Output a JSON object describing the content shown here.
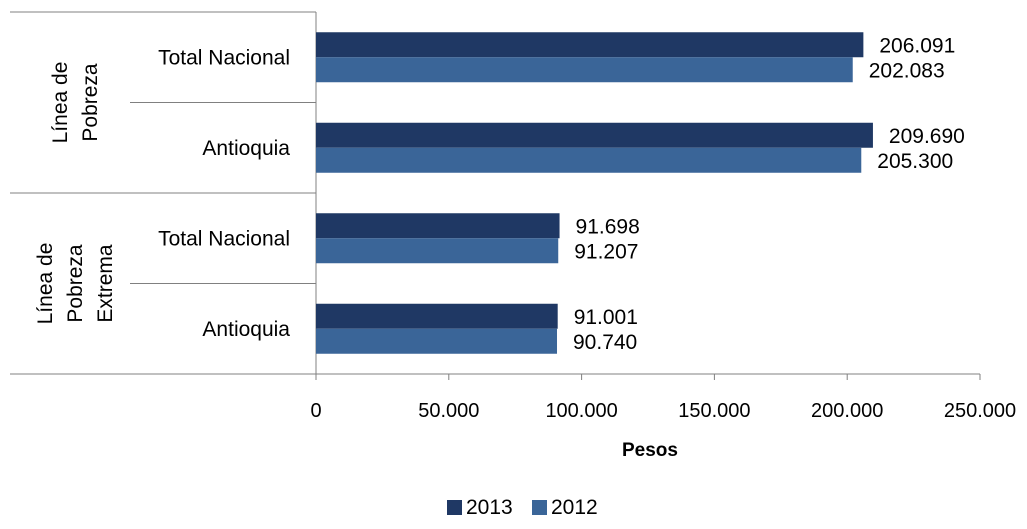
{
  "chart_data": {
    "type": "bar",
    "orientation": "horizontal",
    "title": "",
    "xlabel": "Pesos",
    "xlim": [
      0,
      250000
    ],
    "xticks": [
      0,
      50000,
      100000,
      150000,
      200000,
      250000
    ],
    "xtick_labels": [
      "0",
      "50.000",
      "100.000",
      "150.000",
      "200.000",
      "250.000"
    ],
    "groups": [
      {
        "label": [
          "Línea de",
          "Pobreza"
        ],
        "categories": [
          {
            "label": "Total Nacional",
            "values": [
              206091,
              202083
            ],
            "value_labels": [
              "206.091",
              "202.083"
            ]
          },
          {
            "label": "Antioquia",
            "values": [
              209690,
              205300
            ],
            "value_labels": [
              "209.690",
              "205.300"
            ]
          }
        ]
      },
      {
        "label": [
          "Línea de",
          "Pobreza",
          "Extrema"
        ],
        "categories": [
          {
            "label": "Total Nacional",
            "values": [
              91698,
              91207
            ],
            "value_labels": [
              "91.698",
              "91.207"
            ]
          },
          {
            "label": "Antioquia",
            "values": [
              91001,
              90740
            ],
            "value_labels": [
              "91.001",
              "90.740"
            ]
          }
        ]
      }
    ],
    "series": [
      {
        "name": "2013",
        "color": "#1f3864"
      },
      {
        "name": "2012",
        "color": "#3a6598"
      }
    ],
    "legend_position": "bottom-center",
    "grid": false
  }
}
